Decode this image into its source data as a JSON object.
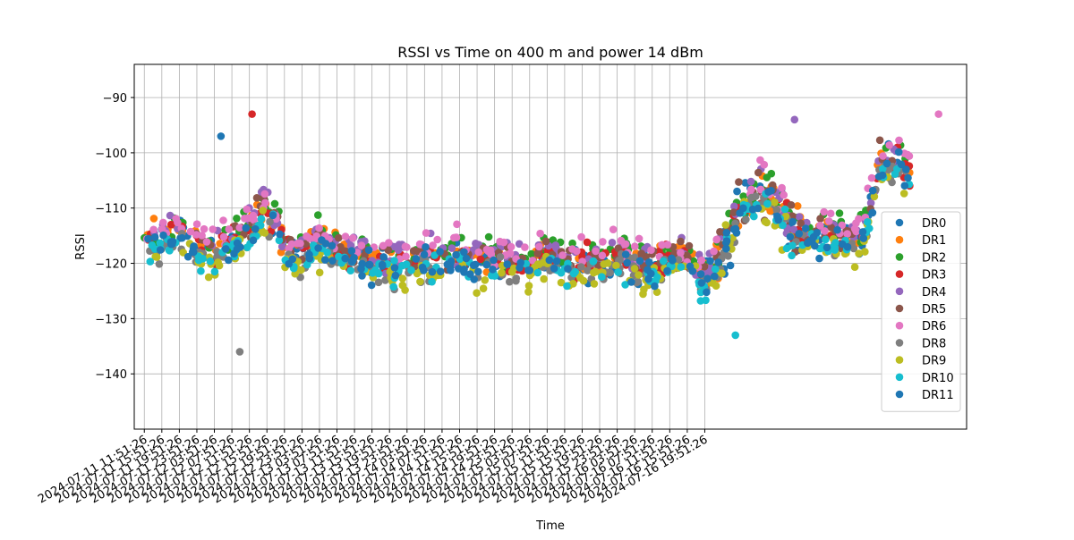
{
  "chart_data": {
    "type": "scatter",
    "title": "RSSI vs Time on 400 m and power 14 dBm",
    "xlabel": "Time",
    "ylabel": "RSSI",
    "ylim": [
      -150,
      -84
    ],
    "y_ticks": [
      -90,
      -100,
      -110,
      -120,
      -130,
      -140
    ],
    "x_start": "2024-07-11 11:51:26",
    "x_tick_step_hours": 4,
    "x_ticks": [
      "2024-07-11 11:51:26",
      "2024-07-11 15:51:26",
      "2024-07-11 19:51:26",
      "2024-07-11 23:51:26",
      "2024-07-12 03:51:26",
      "2024-07-12 07:51:26",
      "2024-07-12 11:51:26",
      "2024-07-12 15:51:26",
      "2024-07-12 19:51:26",
      "2024-07-12 23:51:26",
      "2024-07-13 03:51:26",
      "2024-07-13 07:51:26",
      "2024-07-13 11:51:26",
      "2024-07-13 15:51:26",
      "2024-07-13 19:51:26",
      "2024-07-13 23:51:26",
      "2024-07-14 03:51:26",
      "2024-07-14 07:51:26",
      "2024-07-14 11:51:26",
      "2024-07-14 15:51:26",
      "2024-07-14 19:51:26",
      "2024-07-14 23:51:26",
      "2024-07-15 03:51:26",
      "2024-07-15 07:51:26",
      "2024-07-15 11:51:26",
      "2024-07-15 15:51:26",
      "2024-07-15 19:51:26",
      "2024-07-15 23:51:26",
      "2024-07-16 03:51:26",
      "2024-07-16 07:51:26",
      "2024-07-16 11:51:26",
      "2024-07-16 15:51:26",
      "2024-07-16 19:51:26"
    ],
    "grid": true,
    "legend_position": "right",
    "series": [
      {
        "name": "DR0",
        "color": "#1f77b4"
      },
      {
        "name": "DR1",
        "color": "#ff7f0e"
      },
      {
        "name": "DR2",
        "color": "#2ca02c"
      },
      {
        "name": "DR3",
        "color": "#d62728"
      },
      {
        "name": "DR4",
        "color": "#9467bd"
      },
      {
        "name": "DR5",
        "color": "#8c564b"
      },
      {
        "name": "DR6",
        "color": "#e377c2"
      },
      {
        "name": "DR8",
        "color": "#7f7f7f"
      },
      {
        "name": "DR9",
        "color": "#bcbd22"
      },
      {
        "name": "DR10",
        "color": "#17becf"
      },
      {
        "name": "DR11",
        "color": "#1f77b4"
      }
    ],
    "trend": [
      [
        0,
        -116
      ],
      [
        4,
        -116
      ],
      [
        8,
        -114
      ],
      [
        12,
        -117
      ],
      [
        16,
        -118
      ],
      [
        20,
        -116
      ],
      [
        24,
        -114
      ],
      [
        28,
        -110
      ],
      [
        32,
        -117
      ],
      [
        36,
        -119
      ],
      [
        40,
        -116
      ],
      [
        44,
        -118
      ],
      [
        48,
        -119
      ],
      [
        52,
        -120
      ],
      [
        56,
        -120
      ],
      [
        60,
        -120
      ],
      [
        64,
        -119
      ],
      [
        68,
        -119
      ],
      [
        72,
        -119
      ],
      [
        76,
        -120
      ],
      [
        80,
        -120
      ],
      [
        84,
        -120
      ],
      [
        88,
        -120
      ],
      [
        92,
        -119
      ],
      [
        96,
        -119
      ],
      [
        100,
        -120
      ],
      [
        104,
        -120
      ],
      [
        108,
        -119
      ],
      [
        112,
        -120
      ],
      [
        116,
        -121
      ],
      [
        120,
        -119
      ],
      [
        124,
        -119
      ],
      [
        128,
        -123
      ],
      [
        132,
        -118
      ],
      [
        136,
        -110
      ],
      [
        140,
        -108
      ],
      [
        144,
        -109
      ],
      [
        148,
        -114
      ],
      [
        152,
        -115
      ],
      [
        156,
        -115
      ],
      [
        160,
        -116
      ],
      [
        164,
        -116
      ],
      [
        168,
        -102
      ],
      [
        172,
        -102
      ],
      [
        176,
        -104
      ]
    ],
    "x_data_end_hours": 175,
    "notable_points": [
      {
        "series": "DR0",
        "x_hours": 17.5,
        "y": -97
      },
      {
        "series": "DR3",
        "x_hours": 24.6,
        "y": -93
      },
      {
        "series": "DR6",
        "x_hours": 181.4,
        "y": -93
      },
      {
        "series": "DR4",
        "x_hours": 148.5,
        "y": -94
      },
      {
        "series": "DR8",
        "x_hours": 21.8,
        "y": -136
      },
      {
        "series": "DR10",
        "x_hours": 135.0,
        "y": -133
      }
    ]
  }
}
